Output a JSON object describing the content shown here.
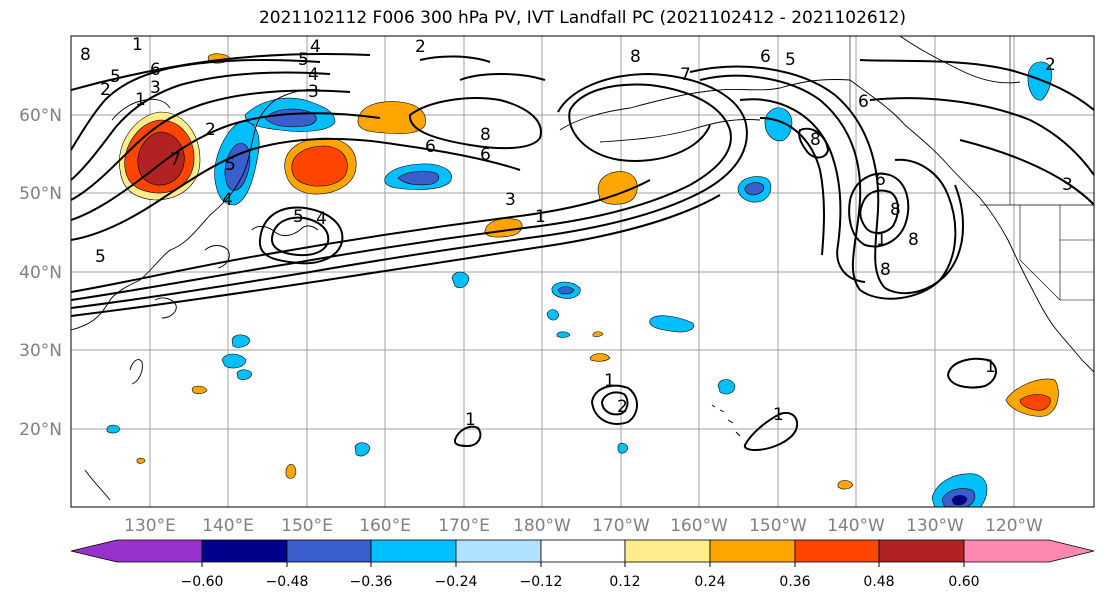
{
  "title": "2021102112 F006 300 hPa PV, IVT Landfall PC (2021102412 - 2021102612)",
  "lat_labels": [
    "60°N",
    "50°N",
    "40°N",
    "30°N",
    "20°N"
  ],
  "lon_labels": [
    "130°E",
    "140°E",
    "150°E",
    "160°E",
    "170°E",
    "180°W",
    "170°W",
    "160°W",
    "150°W",
    "140°W",
    "130°W",
    "120°W"
  ],
  "colorbar": {
    "tick_labels": [
      "−0.60",
      "−0.48",
      "−0.36",
      "−0.24",
      "−0.12",
      "0.12",
      "0.24",
      "0.36",
      "0.48",
      "0.60"
    ],
    "colors": [
      "#9932cc",
      "#00008b",
      "#3a5fcd",
      "#00bfff",
      "#b0e2ff",
      "#ffffff",
      "#ffec8b",
      "#ffa500",
      "#ff4500",
      "#b22222",
      "#ff88b0"
    ]
  },
  "contour_labels": [
    "8",
    "1",
    "5",
    "6",
    "3",
    "2",
    "4",
    "5",
    "4",
    "3",
    "2",
    "8",
    "7",
    "6",
    "1",
    "6",
    "2",
    "8",
    "7",
    "6",
    "5",
    "4",
    "3",
    "5",
    "6",
    "8",
    "3",
    "1",
    "5",
    "4",
    "5",
    "8",
    "6",
    "1",
    "1",
    "1",
    "1",
    "2",
    "8",
    "8",
    "2",
    "1"
  ]
}
